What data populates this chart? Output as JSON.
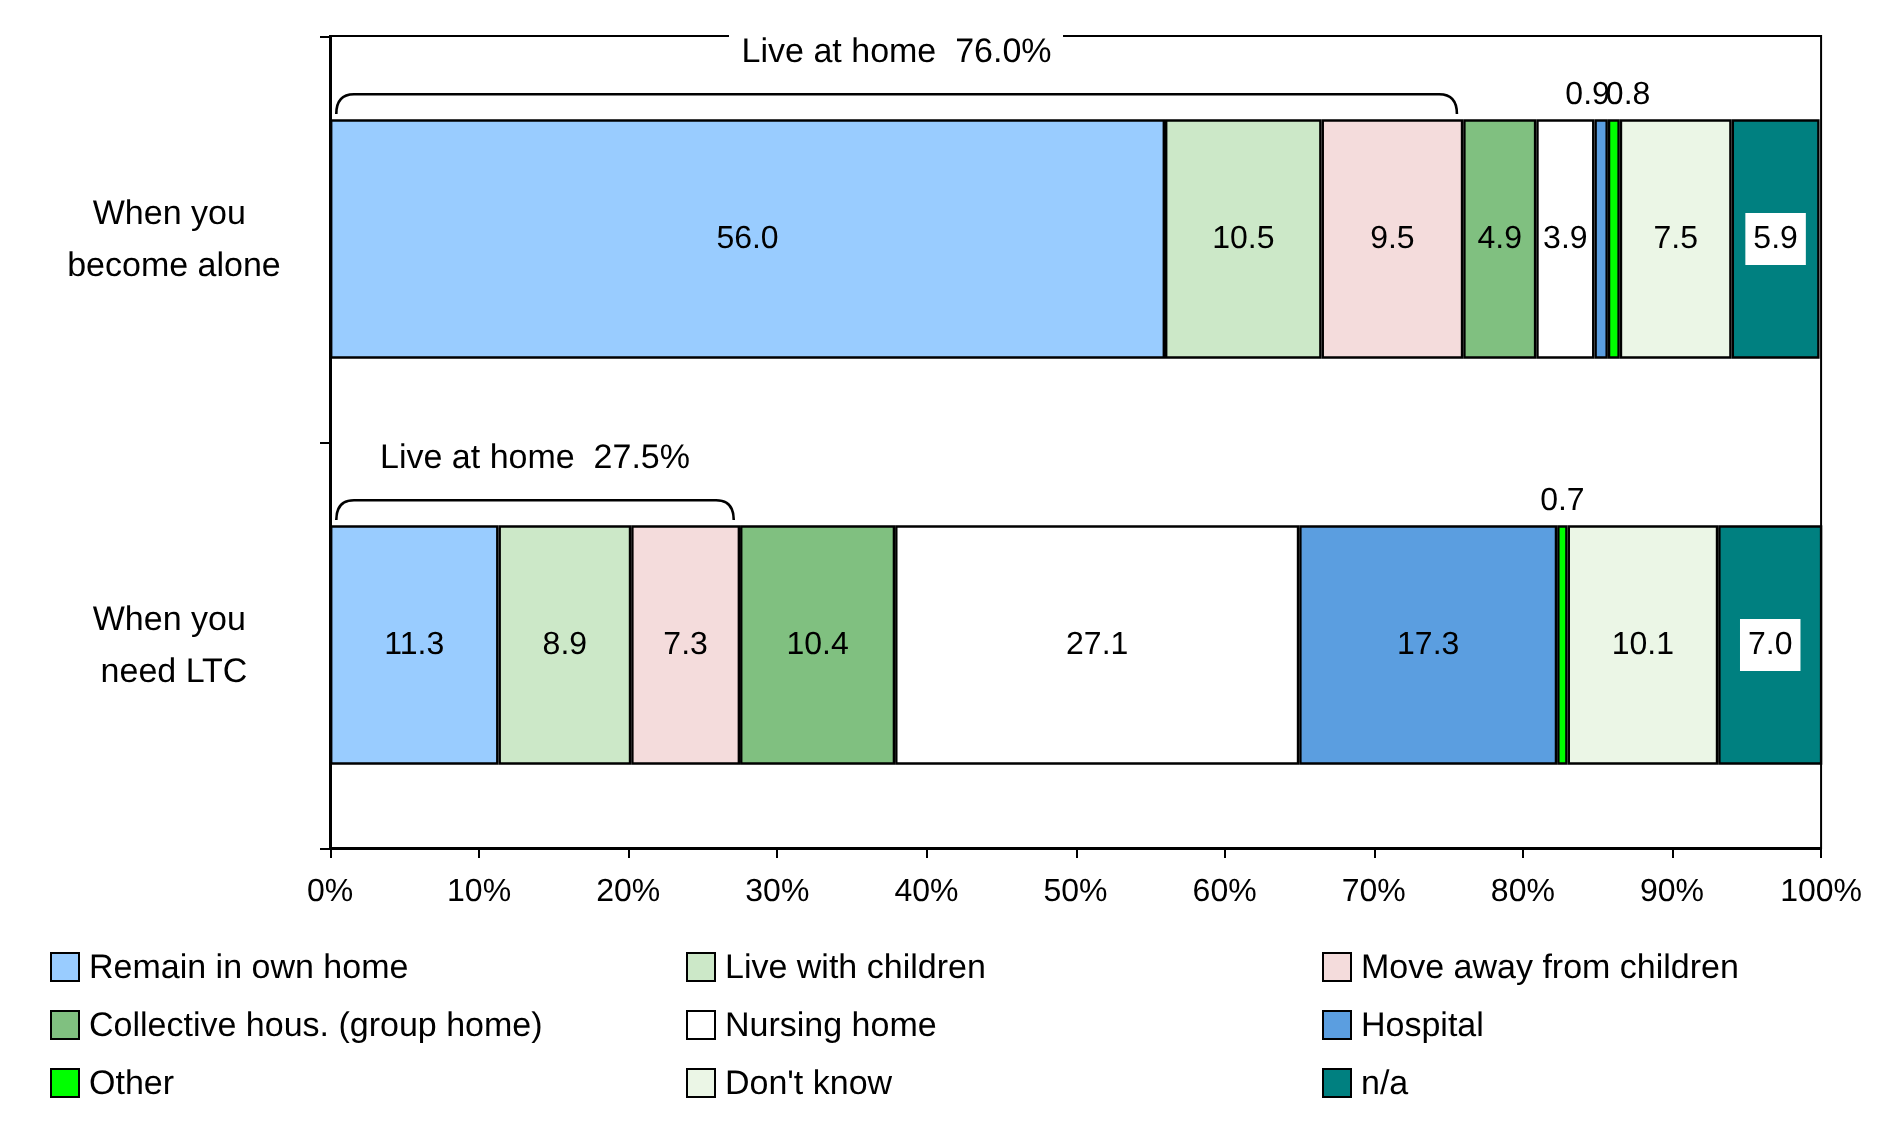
{
  "chart_data": {
    "type": "bar",
    "orientation": "horizontal",
    "stacked": true,
    "categories": [
      "When you become alone",
      "When you need LTC"
    ],
    "series": [
      {
        "name": "Remain in own home",
        "color": "#99ccff",
        "values": [
          56.0,
          11.3
        ],
        "value_labels": [
          "56.0",
          "11.3"
        ]
      },
      {
        "name": "Live with children",
        "color": "#cce8c8",
        "values": [
          10.5,
          8.9
        ],
        "value_labels": [
          "10.5",
          "8.9"
        ]
      },
      {
        "name": "Move away from children",
        "color": "#f4dcdc",
        "values": [
          9.5,
          7.3
        ],
        "value_labels": [
          "9.5",
          "7.3"
        ]
      },
      {
        "name": "Collective hous. (group home)",
        "color": "#80c080",
        "values": [
          4.9,
          10.4
        ],
        "value_labels": [
          "4.9",
          "10.4"
        ]
      },
      {
        "name": "Nursing home",
        "color": "#ffffff",
        "values": [
          3.9,
          27.1
        ],
        "value_labels": [
          "3.9",
          "27.1"
        ]
      },
      {
        "name": "Hospital",
        "color": "#5b9ee0",
        "values": [
          0.9,
          17.3
        ],
        "value_labels": [
          "0.9",
          "17.3"
        ]
      },
      {
        "name": "Other",
        "color": "#00ff00",
        "values": [
          0.8,
          0.7
        ],
        "value_labels": [
          "0.8",
          "0.7"
        ]
      },
      {
        "name": "Don't know",
        "color": "#ebf6e6",
        "values": [
          7.5,
          10.1
        ],
        "value_labels": [
          "7.5",
          "10.1"
        ]
      },
      {
        "name": "n/a",
        "color": "#008080",
        "values": [
          5.9,
          7.0
        ],
        "value_labels": [
          "5.9",
          "7.0"
        ]
      }
    ],
    "xlim": [
      0,
      100
    ],
    "xticks": [
      {
        "value": 0,
        "label": "0%"
      },
      {
        "value": 10,
        "label": "10%"
      },
      {
        "value": 20,
        "label": "20%"
      },
      {
        "value": 30,
        "label": "30%"
      },
      {
        "value": 40,
        "label": "40%"
      },
      {
        "value": 50,
        "label": "50%"
      },
      {
        "value": 60,
        "label": "60%"
      },
      {
        "value": 70,
        "label": "70%"
      },
      {
        "value": 80,
        "label": "80%"
      },
      {
        "value": 90,
        "label": "90%"
      },
      {
        "value": 100,
        "label": "100%"
      }
    ],
    "annotations": [
      "Live at home  76.0%",
      "Live at home  27.5%"
    ],
    "grid": false,
    "legend": "bottom"
  }
}
